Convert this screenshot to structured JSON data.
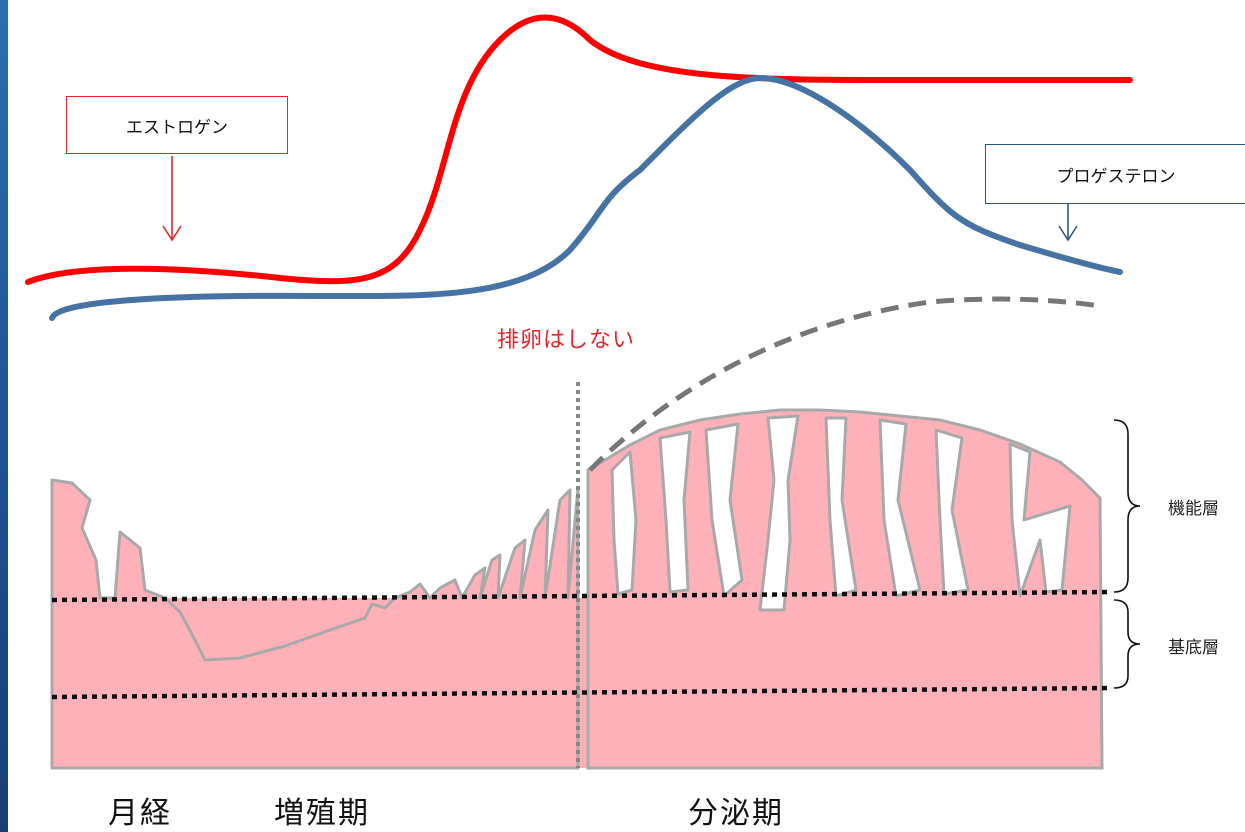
{
  "hormones": {
    "estrogen": {
      "label": "エストロゲン",
      "color": "#ff0000"
    },
    "progesterone": {
      "label": "プロゲステロン",
      "color": "#4673a3"
    }
  },
  "annotation": {
    "no_ovulation": "排卵はしない",
    "color": "#e5262b"
  },
  "layers": {
    "functional": "機能層",
    "basal": "基底層"
  },
  "phases": {
    "menstruation": "月経",
    "proliferative": "増殖期",
    "secretory": "分泌期"
  },
  "colors": {
    "endometrium_fill": "#ffb1ba",
    "endometrium_outline": "#aaaaaa",
    "dashed_curve": "#777777",
    "divider": "#888888"
  }
}
